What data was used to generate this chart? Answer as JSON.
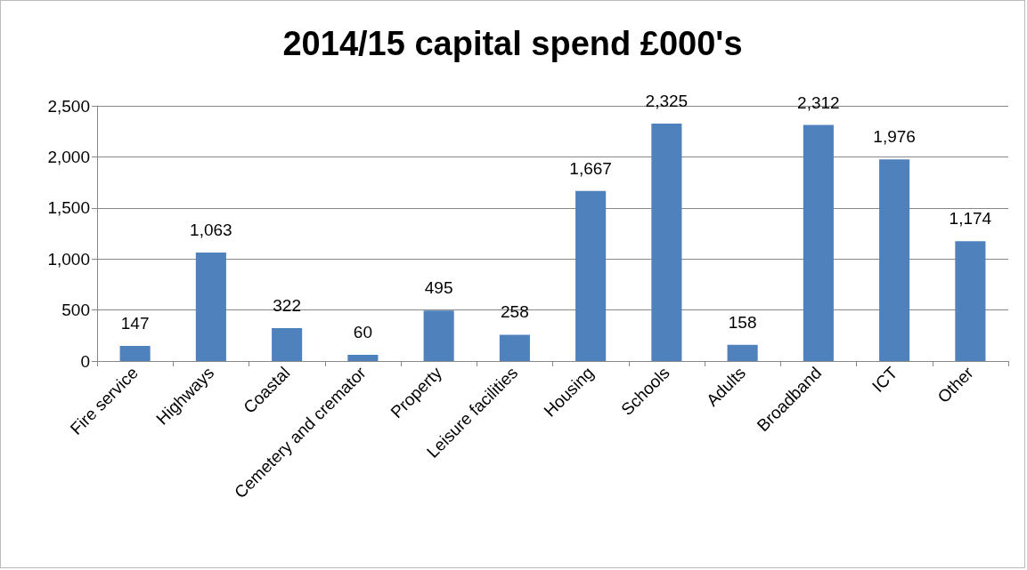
{
  "chart_data": {
    "type": "bar",
    "title": "2014/15 capital spend £000's",
    "categories": [
      "Fire service",
      "Highways",
      "Coastal",
      "Cemetery and cremator",
      "Property",
      "Leisure facilities",
      "Housing",
      "Schools",
      "Adults",
      "Broadband",
      "ICT",
      "Other"
    ],
    "values": [
      147,
      1063,
      322,
      60,
      495,
      258,
      1667,
      2325,
      158,
      2312,
      1976,
      1174
    ],
    "color": "#4f81bd",
    "ylim": [
      0,
      2500
    ],
    "value_labels": [
      "147",
      "1,063",
      "322",
      "60",
      "495",
      "258",
      "1,667",
      "2,325",
      "158",
      "2,312",
      "1,976",
      "1,174"
    ],
    "yticks": [
      0,
      500,
      {
        "value": 1000,
        "label": "1,000"
      },
      {
        "value": 1500,
        "label": "1,500"
      },
      {
        "value": 2000,
        "label": "2,000"
      },
      {
        "value": 2500,
        "label": "2,500"
      }
    ],
    "grid": "y"
  }
}
